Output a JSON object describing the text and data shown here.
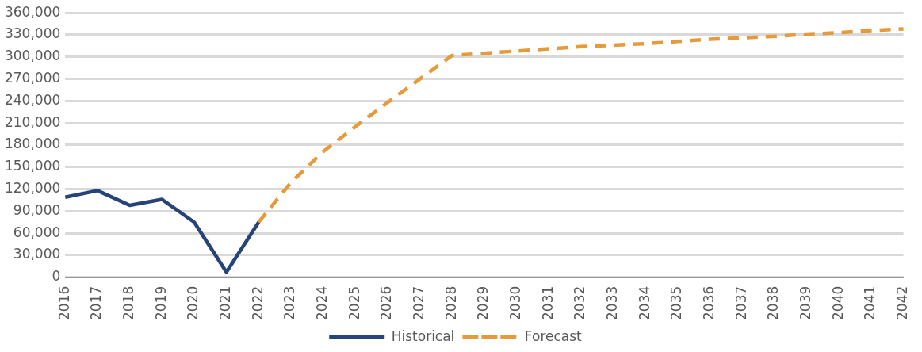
{
  "chart_data": {
    "type": "line",
    "categories": [
      "2016",
      "2017",
      "2018",
      "2019",
      "2020",
      "2021",
      "2022",
      "2023",
      "2024",
      "2025",
      "2026",
      "2027",
      "2028",
      "2029",
      "2030",
      "2031",
      "2032",
      "2033",
      "2034",
      "2035",
      "2036",
      "2037",
      "2038",
      "2039",
      "2040",
      "2041",
      "2042"
    ],
    "series": [
      {
        "name": "Historical",
        "color": "#264478",
        "line_style": "solid",
        "values": [
          109000,
          118000,
          98000,
          106000,
          75000,
          7000,
          75000,
          null,
          null,
          null,
          null,
          null,
          null,
          null,
          null,
          null,
          null,
          null,
          null,
          null,
          null,
          null,
          null,
          null,
          null,
          null,
          null
        ]
      },
      {
        "name": "Forecast",
        "color": "#e59a3c",
        "line_style": "dashed",
        "values": [
          null,
          null,
          null,
          null,
          null,
          null,
          75000,
          129000,
          171000,
          205000,
          238000,
          270000,
          302000,
          305000,
          308000,
          311000,
          314000,
          316000,
          318000,
          321000,
          324000,
          326000,
          328000,
          331000,
          333000,
          336000,
          338000
        ]
      }
    ],
    "ylim": [
      0,
      360000
    ],
    "yticks": [
      0,
      {
        "value": 30000,
        "label": "30,000"
      },
      {
        "value": 60000,
        "label": "60,000"
      },
      {
        "value": 90000,
        "label": "90,000"
      },
      {
        "value": 120000,
        "label": "120,000"
      },
      {
        "value": 150000,
        "label": "150,000"
      },
      {
        "value": 180000,
        "label": "180,000"
      },
      {
        "value": 210000,
        "label": "210,000"
      },
      {
        "value": 240000,
        "label": "240,000"
      },
      {
        "value": 270000,
        "label": "270,000"
      },
      {
        "value": 300000,
        "label": "300,000"
      },
      {
        "value": 330000,
        "label": "330,000"
      },
      {
        "value": 360000,
        "label": "360,000"
      }
    ],
    "grid": "y",
    "legend": "bottom",
    "marker": "none"
  }
}
